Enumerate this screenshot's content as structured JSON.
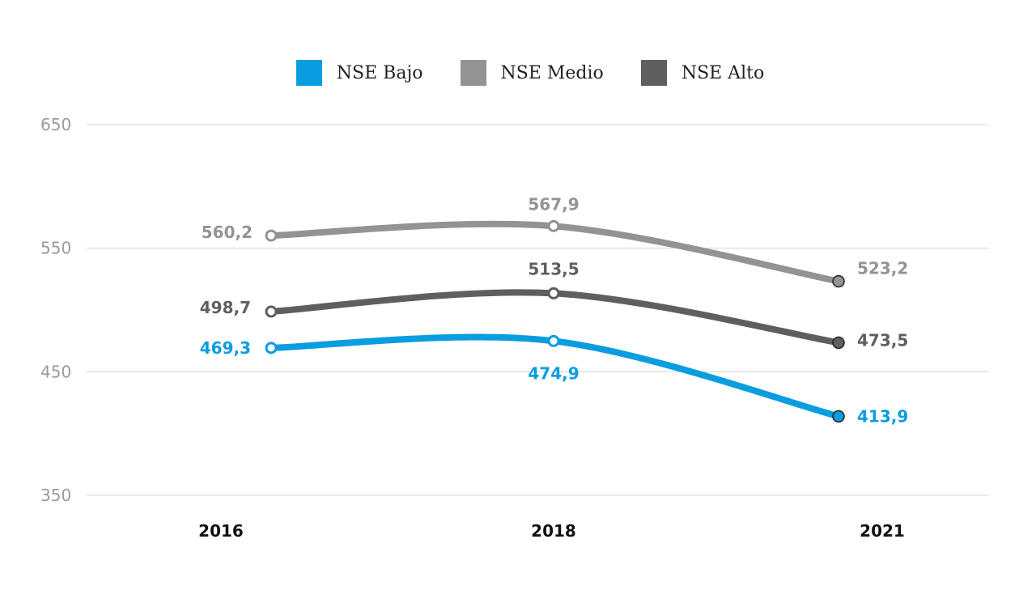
{
  "chart_data": {
    "type": "line",
    "categories": [
      "2016",
      "2018",
      "2021"
    ],
    "ylim": [
      350,
      650
    ],
    "yticks": [
      "650",
      "550",
      "450",
      "350"
    ],
    "grid": true,
    "legend_placement": "top-center",
    "series": [
      {
        "name": "NSE Bajo",
        "color": "#0a9de0",
        "values": [
          469.3,
          474.9,
          413.9
        ],
        "labels": [
          "469,3",
          "474,9",
          "413,9"
        ]
      },
      {
        "name": "NSE Medio",
        "color": "#939393",
        "values": [
          560.2,
          567.9,
          523.2
        ],
        "labels": [
          "560,2",
          "567,9",
          "523,2"
        ]
      },
      {
        "name": "NSE Alto",
        "color": "#5f5f5f",
        "values": [
          498.7,
          513.5,
          473.5
        ],
        "labels": [
          "498,7",
          "513,5",
          "473,5"
        ]
      }
    ]
  }
}
